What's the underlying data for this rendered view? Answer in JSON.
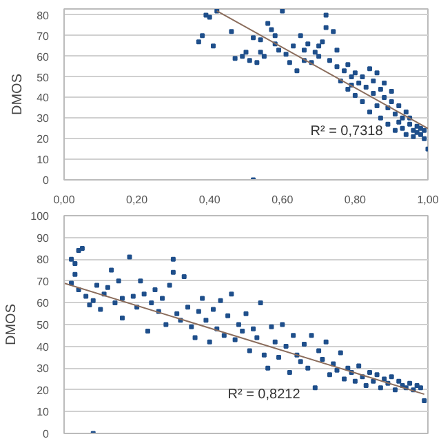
{
  "chart_data": [
    {
      "type": "scatter",
      "ylabel": "DMOS",
      "xlim": [
        0,
        1
      ],
      "ylim": [
        0,
        83
      ],
      "xticks": [
        {
          "value": 0,
          "label": "0,00"
        },
        {
          "value": 0.2,
          "label": "0,20"
        },
        {
          "value": 0.4,
          "label": "0,40"
        },
        {
          "value": 0.6,
          "label": "0,60"
        },
        {
          "value": 0.8,
          "label": "0,80"
        },
        {
          "value": 1,
          "label": "1,00"
        }
      ],
      "yticks": [
        0,
        10,
        20,
        30,
        40,
        50,
        60,
        70,
        80
      ],
      "grid": "y",
      "annotations": [
        "R² = 0,7318"
      ],
      "series": [
        {
          "marker": "square",
          "color": "#1f4f8b",
          "x": [
            0.37,
            0.38,
            0.39,
            0.4,
            0.41,
            0.42,
            0.46,
            0.47,
            0.49,
            0.5,
            0.51,
            0.52,
            0.52,
            0.53,
            0.54,
            0.55,
            0.56,
            0.57,
            0.58,
            0.59,
            0.6,
            0.61,
            0.62,
            0.63,
            0.64,
            0.65,
            0.66,
            0.67,
            0.68,
            0.69,
            0.7,
            0.71,
            0.72,
            0.72,
            0.73,
            0.74,
            0.75,
            0.75,
            0.76,
            0.77,
            0.78,
            0.78,
            0.79,
            0.8,
            0.8,
            0.81,
            0.82,
            0.82,
            0.83,
            0.84,
            0.84,
            0.85,
            0.85,
            0.86,
            0.86,
            0.87,
            0.87,
            0.88,
            0.88,
            0.89,
            0.89,
            0.9,
            0.9,
            0.91,
            0.91,
            0.92,
            0.92,
            0.93,
            0.93,
            0.94,
            0.94,
            0.95,
            0.95,
            0.96,
            0.96,
            0.97,
            0.97,
            0.98,
            0.98,
            0.99,
            0.99,
            1.0,
            0.54,
            0.58,
            0.66,
            0.7,
            0.79
          ],
          "values": [
            67,
            70,
            80,
            79,
            65,
            82,
            72,
            59,
            60,
            62,
            58,
            0,
            69,
            57,
            68,
            60,
            76,
            73,
            66,
            63,
            82,
            61,
            57,
            65,
            53,
            70,
            63,
            66,
            57,
            62,
            60,
            67,
            74,
            80,
            58,
            72,
            55,
            63,
            48,
            53,
            56,
            44,
            50,
            52,
            41,
            47,
            50,
            38,
            45,
            54,
            33,
            42,
            48,
            36,
            52,
            44,
            30,
            40,
            47,
            35,
            27,
            38,
            43,
            32,
            24,
            36,
            28,
            30,
            25,
            33,
            22,
            27,
            30,
            24,
            21,
            26,
            23,
            22,
            25,
            20,
            24,
            15,
            62,
            70,
            58,
            65,
            46
          ]
        },
        {
          "type": "line",
          "color": "#8b6d5c",
          "x": [
            0.42,
            1.0
          ],
          "values": [
            82,
            25
          ]
        }
      ]
    },
    {
      "type": "scatter",
      "ylabel": "DMOS",
      "xlim": [
        0,
        1
      ],
      "ylim": [
        0,
        100
      ],
      "yticks": [
        0,
        10,
        20,
        30,
        40,
        50,
        60,
        70,
        80,
        90,
        100
      ],
      "grid": "y",
      "tick_labels": "y",
      "annotations": [
        "R² = 0,8212"
      ],
      "series": [
        {
          "marker": "square",
          "color": "#1f4f8b",
          "x": [
            0.02,
            0.03,
            0.04,
            0.05,
            0.02,
            0.03,
            0.04,
            0.06,
            0.07,
            0.08,
            0.08,
            0.09,
            0.1,
            0.11,
            0.12,
            0.13,
            0.14,
            0.15,
            0.16,
            0.16,
            0.18,
            0.19,
            0.2,
            0.21,
            0.22,
            0.23,
            0.24,
            0.25,
            0.26,
            0.27,
            0.28,
            0.29,
            0.3,
            0.3,
            0.31,
            0.32,
            0.33,
            0.34,
            0.35,
            0.36,
            0.37,
            0.38,
            0.39,
            0.4,
            0.41,
            0.42,
            0.43,
            0.44,
            0.45,
            0.46,
            0.47,
            0.48,
            0.49,
            0.5,
            0.51,
            0.52,
            0.53,
            0.54,
            0.55,
            0.56,
            0.57,
            0.58,
            0.59,
            0.6,
            0.61,
            0.62,
            0.63,
            0.64,
            0.65,
            0.66,
            0.67,
            0.68,
            0.69,
            0.7,
            0.71,
            0.72,
            0.73,
            0.74,
            0.75,
            0.76,
            0.77,
            0.78,
            0.79,
            0.8,
            0.81,
            0.82,
            0.83,
            0.84,
            0.85,
            0.86,
            0.87,
            0.88,
            0.89,
            0.9,
            0.91,
            0.92,
            0.93,
            0.94,
            0.95,
            0.96,
            0.97,
            0.98,
            0.99
          ],
          "values": [
            80,
            78,
            84,
            85,
            69,
            73,
            66,
            63,
            59,
            61,
            0,
            68,
            57,
            64,
            67,
            75,
            60,
            70,
            62,
            53,
            81,
            63,
            58,
            70,
            64,
            47,
            60,
            66,
            56,
            62,
            50,
            68,
            74,
            80,
            55,
            52,
            72,
            58,
            49,
            44,
            56,
            62,
            52,
            42,
            57,
            48,
            61,
            45,
            54,
            64,
            43,
            50,
            47,
            55,
            38,
            48,
            44,
            60,
            36,
            30,
            49,
            42,
            35,
            50,
            40,
            28,
            45,
            36,
            33,
            41,
            30,
            45,
            21,
            38,
            34,
            42,
            27,
            32,
            29,
            37,
            25,
            30,
            28,
            24,
            31,
            26,
            22,
            28,
            24,
            27,
            21,
            25,
            23,
            26,
            20,
            24,
            22,
            21,
            23,
            20,
            22,
            21,
            15
          ]
        },
        {
          "type": "line",
          "color": "#8b6d5c",
          "x": [
            0.0,
            0.99
          ],
          "values": [
            69,
            18
          ]
        }
      ]
    }
  ]
}
